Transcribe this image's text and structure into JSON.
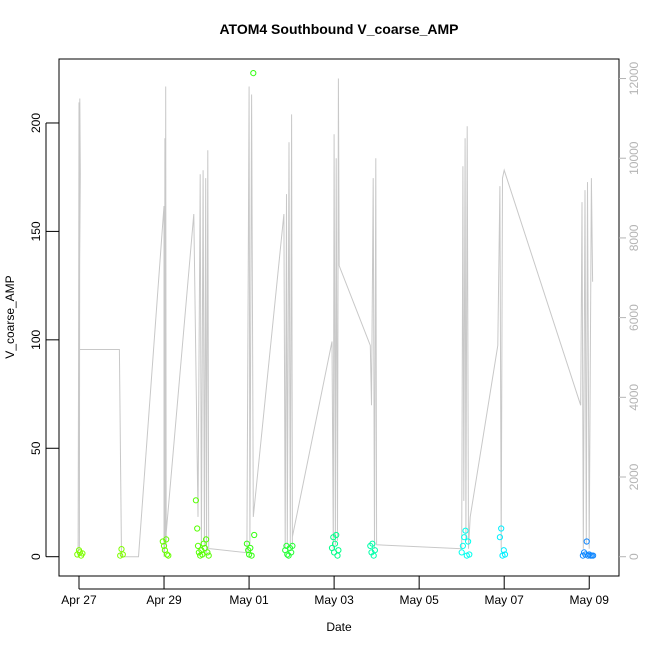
{
  "chart_data": {
    "type": "scatter",
    "title": "ATOM4 Southbound V_coarse_AMP",
    "xlabel": "Date",
    "ylabel": "V_coarse_AMP",
    "ylabel_right": "",
    "xlim": [
      "Apr 27",
      "May 09"
    ],
    "ylim": [
      0,
      220
    ],
    "ylim_right": [
      0,
      12000
    ],
    "x_ticks": [
      "Apr 27",
      "Apr 29",
      "May 01",
      "May 03",
      "May 05",
      "May 07",
      "May 09"
    ],
    "x_tick_days": [
      0,
      2,
      4,
      6,
      8,
      10,
      12
    ],
    "y_ticks_left": [
      "0",
      "50",
      "100",
      "150",
      "200"
    ],
    "y_tick_values_left": [
      0,
      50,
      100,
      150,
      200
    ],
    "y_ticks_right": [
      "0",
      "2000",
      "4000",
      "6000",
      "8000",
      "10000",
      "12000"
    ],
    "y_tick_values_right": [
      0,
      2000,
      4000,
      6000,
      8000,
      10000,
      12000
    ],
    "grid": false,
    "series": [
      {
        "role": "points",
        "marker": "circle",
        "axis": "left",
        "colors": [
          "#7fff00",
          "#55ff00",
          "#22ff22",
          "#00ff66",
          "#00ffaa",
          "#00ffdd",
          "#00ffff",
          "#00ddff",
          "#0099ff"
        ],
        "points": [
          {
            "x": -0.04,
            "y": 1,
            "c": "#7fff00"
          },
          {
            "x": 0.0,
            "y": 3,
            "c": "#7fff00"
          },
          {
            "x": 0.02,
            "y": 2,
            "c": "#7fff00"
          },
          {
            "x": 0.05,
            "y": 0.5,
            "c": "#7fff00"
          },
          {
            "x": 0.08,
            "y": 1.5,
            "c": "#7fff00"
          },
          {
            "x": 0.97,
            "y": 0.5,
            "c": "#7fff00"
          },
          {
            "x": 1.0,
            "y": 3.5,
            "c": "#7fff00"
          },
          {
            "x": 1.03,
            "y": 1,
            "c": "#7fff00"
          },
          {
            "x": 1.97,
            "y": 7,
            "c": "#66ff00"
          },
          {
            "x": 2.0,
            "y": 5,
            "c": "#66ff00"
          },
          {
            "x": 2.02,
            "y": 3,
            "c": "#66ff00"
          },
          {
            "x": 2.05,
            "y": 8,
            "c": "#66ff00"
          },
          {
            "x": 2.07,
            "y": 1,
            "c": "#66ff00"
          },
          {
            "x": 2.1,
            "y": 0.5,
            "c": "#66ff00"
          },
          {
            "x": 2.75,
            "y": 26,
            "c": "#55ff00"
          },
          {
            "x": 2.78,
            "y": 13,
            "c": "#55ff00"
          },
          {
            "x": 2.8,
            "y": 5,
            "c": "#55ff00"
          },
          {
            "x": 2.82,
            "y": 2,
            "c": "#55ff00"
          },
          {
            "x": 2.85,
            "y": 0.5,
            "c": "#55ff00"
          },
          {
            "x": 2.88,
            "y": 3,
            "c": "#55ff00"
          },
          {
            "x": 2.9,
            "y": 1,
            "c": "#55ff00"
          },
          {
            "x": 2.93,
            "y": 6,
            "c": "#55ff00"
          },
          {
            "x": 2.96,
            "y": 4,
            "c": "#55ff00"
          },
          {
            "x": 2.99,
            "y": 8,
            "c": "#55ff00"
          },
          {
            "x": 3.02,
            "y": 2,
            "c": "#55ff00"
          },
          {
            "x": 3.05,
            "y": 0.5,
            "c": "#55ff00"
          },
          {
            "x": 3.95,
            "y": 6,
            "c": "#33ff11"
          },
          {
            "x": 3.98,
            "y": 3,
            "c": "#33ff11"
          },
          {
            "x": 4.0,
            "y": 1,
            "c": "#33ff11"
          },
          {
            "x": 4.03,
            "y": 4,
            "c": "#33ff11"
          },
          {
            "x": 4.06,
            "y": 0.5,
            "c": "#33ff11"
          },
          {
            "x": 4.1,
            "y": 223,
            "c": "#33ff11"
          },
          {
            "x": 4.12,
            "y": 10,
            "c": "#33ff11"
          },
          {
            "x": 4.85,
            "y": 3,
            "c": "#22ff33"
          },
          {
            "x": 4.88,
            "y": 5,
            "c": "#22ff33"
          },
          {
            "x": 4.9,
            "y": 1,
            "c": "#22ff33"
          },
          {
            "x": 4.93,
            "y": 0.5,
            "c": "#22ff33"
          },
          {
            "x": 4.96,
            "y": 4,
            "c": "#22ff33"
          },
          {
            "x": 4.99,
            "y": 2,
            "c": "#22ff33"
          },
          {
            "x": 5.02,
            "y": 5,
            "c": "#22ff33"
          },
          {
            "x": 5.95,
            "y": 4,
            "c": "#00ff88"
          },
          {
            "x": 5.98,
            "y": 9,
            "c": "#00ff88"
          },
          {
            "x": 6.0,
            "y": 2,
            "c": "#00ff88"
          },
          {
            "x": 6.02,
            "y": 6,
            "c": "#00ff88"
          },
          {
            "x": 6.05,
            "y": 10,
            "c": "#00ff88"
          },
          {
            "x": 6.08,
            "y": 0.5,
            "c": "#00ff88"
          },
          {
            "x": 6.1,
            "y": 3,
            "c": "#00ff88"
          },
          {
            "x": 6.85,
            "y": 5,
            "c": "#00ffaa"
          },
          {
            "x": 6.88,
            "y": 2,
            "c": "#00ffaa"
          },
          {
            "x": 6.9,
            "y": 6,
            "c": "#00ffaa"
          },
          {
            "x": 6.93,
            "y": 0.5,
            "c": "#00ffaa"
          },
          {
            "x": 6.96,
            "y": 3,
            "c": "#00ffaa"
          },
          {
            "x": 9.0,
            "y": 2,
            "c": "#00ffee"
          },
          {
            "x": 9.03,
            "y": 5,
            "c": "#00ffee"
          },
          {
            "x": 9.06,
            "y": 9,
            "c": "#00ffee"
          },
          {
            "x": 9.09,
            "y": 12,
            "c": "#00ffee"
          },
          {
            "x": 9.12,
            "y": 0.5,
            "c": "#00ffee"
          },
          {
            "x": 9.15,
            "y": 7,
            "c": "#00ffee"
          },
          {
            "x": 9.18,
            "y": 1,
            "c": "#00ffee"
          },
          {
            "x": 9.9,
            "y": 9,
            "c": "#00eeff"
          },
          {
            "x": 9.93,
            "y": 13,
            "c": "#00eeff"
          },
          {
            "x": 9.96,
            "y": 0.5,
            "c": "#00eeff"
          },
          {
            "x": 9.99,
            "y": 3,
            "c": "#00eeff"
          },
          {
            "x": 10.02,
            "y": 1,
            "c": "#00eeff"
          },
          {
            "x": 11.85,
            "y": 0.5,
            "c": "#1188ff"
          },
          {
            "x": 11.88,
            "y": 2,
            "c": "#1188ff"
          },
          {
            "x": 11.91,
            "y": 1,
            "c": "#1188ff"
          },
          {
            "x": 11.94,
            "y": 7,
            "c": "#1188ff"
          },
          {
            "x": 11.97,
            "y": 0.5,
            "c": "#1188ff"
          },
          {
            "x": 12.0,
            "y": 1,
            "c": "#1188ff"
          },
          {
            "x": 12.03,
            "y": 0.5,
            "c": "#1188ff"
          },
          {
            "x": 12.06,
            "y": 0.5,
            "c": "#1188ff"
          },
          {
            "x": 12.09,
            "y": 0.5,
            "c": "#1188ff"
          }
        ]
      },
      {
        "role": "line",
        "axis": "right",
        "color": "#c8c8c8",
        "points": [
          [
            -0.02,
            0
          ],
          [
            -0.01,
            5300
          ],
          [
            0.0,
            11400
          ],
          [
            0.01,
            200
          ],
          [
            0.02,
            11500
          ],
          [
            0.03,
            9600
          ],
          [
            0.0,
            5200
          ],
          [
            0.95,
            5200
          ],
          [
            1.0,
            0
          ],
          [
            1.4,
            1
          ],
          [
            2.0,
            8800
          ],
          [
            2.0,
            1
          ],
          [
            2.01,
            100
          ],
          [
            2.02,
            10500
          ],
          [
            2.03,
            300
          ],
          [
            2.04,
            11800
          ],
          [
            2.05,
            200
          ],
          [
            2.05,
            600
          ],
          [
            2.7,
            8600
          ],
          [
            2.8,
            1000
          ],
          [
            2.85,
            9600
          ],
          [
            2.88,
            200
          ],
          [
            2.92,
            9700
          ],
          [
            2.95,
            300
          ],
          [
            2.98,
            9500
          ],
          [
            3.0,
            100
          ],
          [
            3.03,
            10200
          ],
          [
            3.05,
            200
          ],
          [
            3.1,
            200
          ],
          [
            3.95,
            100
          ],
          [
            4.0,
            11800
          ],
          [
            4.02,
            300
          ],
          [
            4.06,
            11600
          ],
          [
            4.1,
            1000
          ],
          [
            4.1,
            1000
          ],
          [
            4.82,
            8600
          ],
          [
            4.85,
            200
          ],
          [
            4.88,
            9100
          ],
          [
            4.9,
            300
          ],
          [
            4.94,
            10400
          ],
          [
            4.97,
            200
          ],
          [
            5.0,
            11100
          ],
          [
            5.02,
            300
          ],
          [
            5.02,
            500
          ],
          [
            5.95,
            5400
          ],
          [
            5.98,
            200
          ],
          [
            6.0,
            10600
          ],
          [
            6.03,
            300
          ],
          [
            6.05,
            10000
          ],
          [
            6.08,
            400
          ],
          [
            6.1,
            12000
          ],
          [
            6.12,
            7300
          ],
          [
            6.12,
            7300
          ],
          [
            6.85,
            5300
          ],
          [
            6.88,
            3800
          ],
          [
            6.92,
            9500
          ],
          [
            6.95,
            200
          ],
          [
            6.98,
            10000
          ],
          [
            7.0,
            300
          ],
          [
            7.0,
            300
          ],
          [
            9.0,
            200
          ],
          [
            9.03,
            9800
          ],
          [
            9.05,
            1400
          ],
          [
            9.08,
            10500
          ],
          [
            9.1,
            400
          ],
          [
            9.13,
            10800
          ],
          [
            9.16,
            200
          ],
          [
            9.2,
            1000
          ],
          [
            9.85,
            5300
          ],
          [
            9.9,
            9300
          ],
          [
            9.93,
            200
          ],
          [
            9.96,
            9500
          ],
          [
            10.0,
            9700
          ],
          [
            10.0,
            9700
          ],
          [
            11.8,
            3800
          ],
          [
            11.83,
            8900
          ],
          [
            11.86,
            200
          ],
          [
            11.9,
            9200
          ],
          [
            11.93,
            300
          ],
          [
            11.96,
            9400
          ],
          [
            12.0,
            200
          ],
          [
            12.05,
            9500
          ],
          [
            12.08,
            6900
          ]
        ]
      }
    ]
  }
}
